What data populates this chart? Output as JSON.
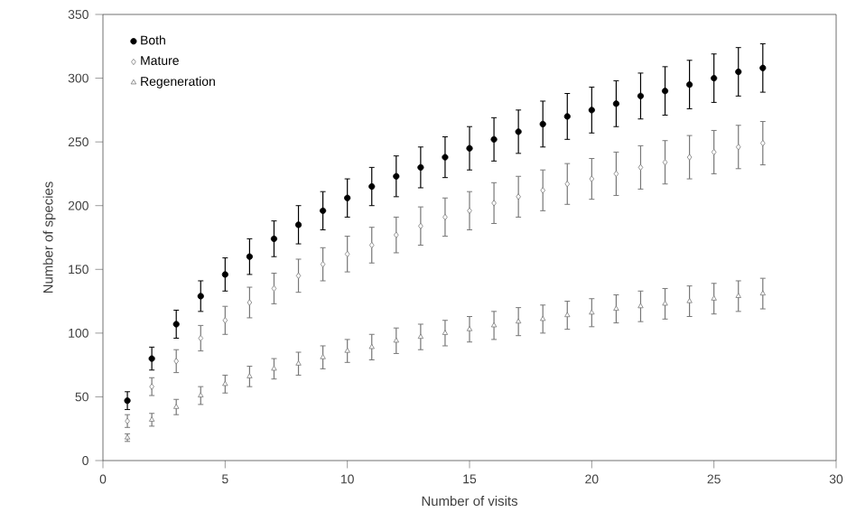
{
  "chart_data": {
    "type": "scatter",
    "xlabel": "Number of visits",
    "ylabel": "Number of species",
    "x": [
      1,
      2,
      3,
      4,
      5,
      6,
      7,
      8,
      9,
      10,
      11,
      12,
      13,
      14,
      15,
      16,
      17,
      18,
      19,
      20,
      21,
      22,
      23,
      24,
      25,
      26,
      27
    ],
    "xlim": [
      0,
      30
    ],
    "xticks": [
      0,
      5,
      10,
      15,
      20,
      25,
      30
    ],
    "ylim": [
      0,
      350
    ],
    "yticks": [
      0,
      50,
      100,
      150,
      200,
      250,
      300,
      350
    ],
    "legend": "top left",
    "grid": false,
    "series": [
      {
        "name": "Both",
        "color": "#000000",
        "marker": "circle",
        "values": [
          47,
          80,
          107,
          129,
          146,
          160,
          174,
          185,
          196,
          206,
          215,
          223,
          230,
          238,
          245,
          252,
          258,
          264,
          270,
          275,
          280,
          286,
          290,
          295,
          300,
          305,
          308
        ],
        "errors": [
          7,
          9,
          11,
          12,
          13,
          14,
          14,
          15,
          15,
          15,
          15,
          16,
          16,
          16,
          17,
          17,
          17,
          18,
          18,
          18,
          18,
          18,
          19,
          19,
          19,
          19,
          19
        ]
      },
      {
        "name": "Mature",
        "color": "#777777",
        "marker": "diamond",
        "values": [
          31,
          58,
          78,
          96,
          110,
          124,
          135,
          145,
          154,
          162,
          169,
          177,
          184,
          191,
          196,
          202,
          207,
          212,
          217,
          221,
          225,
          230,
          234,
          238,
          242,
          246,
          249
        ],
        "errors": [
          5,
          7,
          9,
          10,
          11,
          12,
          12,
          13,
          13,
          14,
          14,
          14,
          15,
          15,
          15,
          16,
          16,
          16,
          16,
          16,
          17,
          17,
          17,
          17,
          17,
          17,
          17
        ]
      },
      {
        "name": "Regeneration",
        "color": "#777777",
        "marker": "triangle",
        "values": [
          18,
          32,
          42,
          51,
          60,
          66,
          72,
          76,
          81,
          86,
          89,
          94,
          97,
          100,
          103,
          106,
          109,
          111,
          114,
          116,
          119,
          121,
          123,
          125,
          127,
          129,
          131
        ],
        "errors": [
          3,
          5,
          6,
          7,
          7,
          8,
          8,
          9,
          9,
          9,
          10,
          10,
          10,
          10,
          10,
          11,
          11,
          11,
          11,
          11,
          11,
          12,
          12,
          12,
          12,
          12,
          12
        ]
      }
    ]
  }
}
